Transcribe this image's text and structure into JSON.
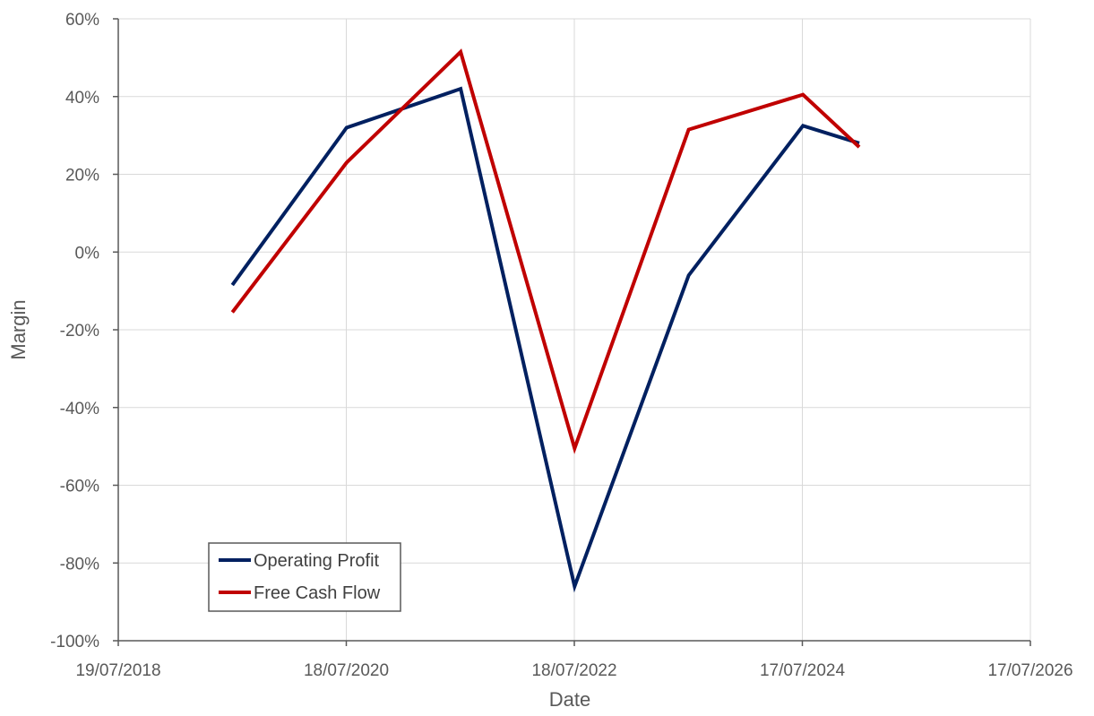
{
  "chart_data": {
    "type": "line",
    "title": "",
    "xlabel": "Date",
    "ylabel": "Margin",
    "x_axis": {
      "min": "2018-07-19",
      "max": "2026-07-17",
      "tick_labels": [
        "19/07/2018",
        "18/07/2020",
        "18/07/2022",
        "17/07/2024",
        "17/07/2026"
      ]
    },
    "y_axis": {
      "min": -100,
      "max": 60,
      "step": 20,
      "unit": "%",
      "tick_labels": [
        "60%",
        "40%",
        "20%",
        "0%",
        "-20%",
        "-40%",
        "-60%",
        "-80%",
        "-100%"
      ]
    },
    "grid": true,
    "legend_position": "bottom-left",
    "series": [
      {
        "name": "Operating Profit",
        "color": "#002060",
        "points": [
          {
            "x": "2019-07-19",
            "y": -8.5
          },
          {
            "x": "2020-07-19",
            "y": 32
          },
          {
            "x": "2021-07-19",
            "y": 42
          },
          {
            "x": "2022-07-19",
            "y": -86
          },
          {
            "x": "2023-07-19",
            "y": -6
          },
          {
            "x": "2024-07-19",
            "y": 32.5
          },
          {
            "x": "2025-01-15",
            "y": 28
          }
        ]
      },
      {
        "name": "Free Cash Flow",
        "color": "#c00000",
        "points": [
          {
            "x": "2019-07-19",
            "y": -15.5
          },
          {
            "x": "2020-07-19",
            "y": 23
          },
          {
            "x": "2021-07-19",
            "y": 51.5
          },
          {
            "x": "2022-07-19",
            "y": -50.5
          },
          {
            "x": "2023-07-19",
            "y": 31.5
          },
          {
            "x": "2024-07-19",
            "y": 40.5
          },
          {
            "x": "2025-01-15",
            "y": 27
          }
        ]
      }
    ]
  }
}
